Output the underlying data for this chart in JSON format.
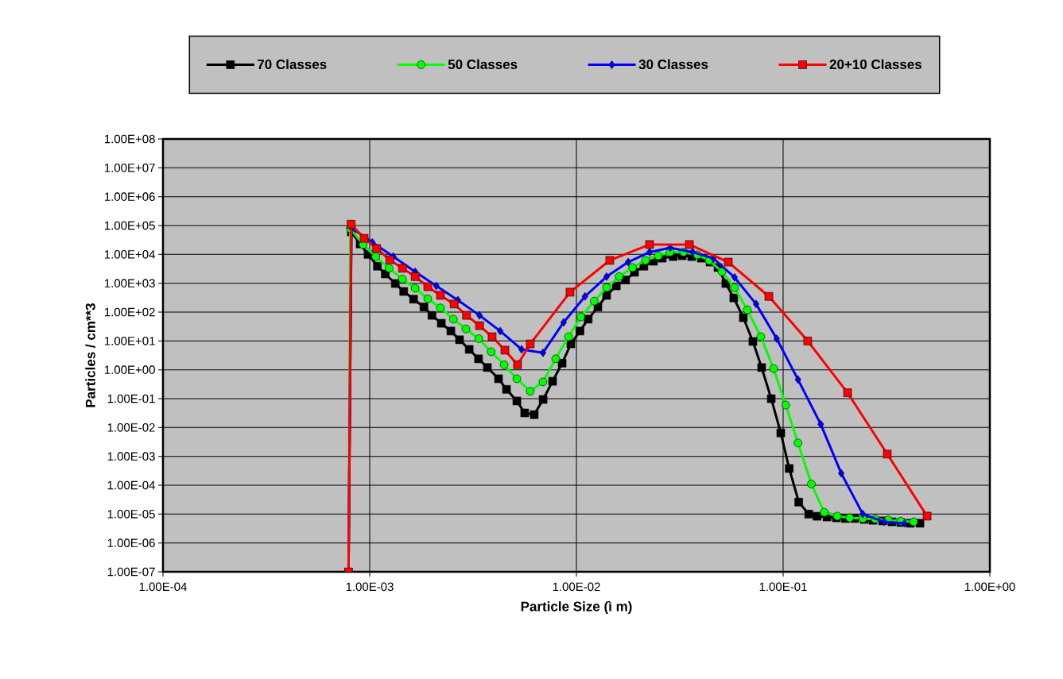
{
  "chart_data": {
    "type": "line",
    "xlabel": "Particle Size (ì m)",
    "ylabel": "Particles / cm**3",
    "log": "xy",
    "grid": true,
    "legend": "top",
    "xlim": [
      0.0001,
      1
    ],
    "ylim": [
      1e-07,
      100000000.0
    ],
    "xticks": [
      {
        "value": 0.0001,
        "label": "1.00E-04"
      },
      {
        "value": 0.001,
        "label": "1.00E-03"
      },
      {
        "value": 0.01,
        "label": "1.00E-02"
      },
      {
        "value": 0.1,
        "label": "1.00E-01"
      },
      {
        "value": 1,
        "label": "1.00E+00"
      }
    ],
    "yticks": [
      {
        "value": 1e-07,
        "label": "1.00E-07"
      },
      {
        "value": 1e-06,
        "label": "1.00E-06"
      },
      {
        "value": 1e-05,
        "label": "1.00E-05"
      },
      {
        "value": 0.0001,
        "label": "1.00E-04"
      },
      {
        "value": 0.001,
        "label": "1.00E-03"
      },
      {
        "value": 0.01,
        "label": "1.00E-02"
      },
      {
        "value": 0.1,
        "label": "1.00E-01"
      },
      {
        "value": 1,
        "label": "1.00E+00"
      },
      {
        "value": 10,
        "label": "1.00E+01"
      },
      {
        "value": 100,
        "label": "1.00E+02"
      },
      {
        "value": 1000,
        "label": "1.00E+03"
      },
      {
        "value": 10000,
        "label": "1.00E+04"
      },
      {
        "value": 100000,
        "label": "1.00E+05"
      },
      {
        "value": 1000000,
        "label": "1.00E+06"
      },
      {
        "value": 10000000,
        "label": "1.00E+07"
      },
      {
        "value": 100000000,
        "label": "1.00E+08"
      }
    ],
    "series": [
      {
        "name": "70 Classes",
        "color": "#000000",
        "marker": "square",
        "x": [
          0.00079,
          0.000815,
          0.000899,
          0.000982,
          0.00109,
          0.00119,
          0.00133,
          0.00146,
          0.00163,
          0.00183,
          0.002,
          0.00222,
          0.00247,
          0.00272,
          0.00303,
          0.00336,
          0.00371,
          0.0042,
          0.00459,
          0.00515,
          0.00562,
          0.00625,
          0.0069,
          0.00767,
          0.00853,
          0.0094,
          0.0104,
          0.0114,
          0.0127,
          0.014,
          0.0156,
          0.0173,
          0.0191,
          0.0212,
          0.0236,
          0.026,
          0.0294,
          0.0325,
          0.0361,
          0.0402,
          0.0443,
          0.0484,
          0.0528,
          0.0577,
          0.0642,
          0.0714,
          0.0787,
          0.0876,
          0.0974,
          0.107,
          0.119,
          0.133,
          0.146,
          0.163,
          0.181,
          0.2,
          0.222,
          0.247,
          0.272,
          0.303,
          0.336,
          0.371,
          0.412,
          0.459
        ],
        "values": [
          1e-07,
          60000.0,
          23000.0,
          10000.0,
          3900,
          2100,
          980,
          520,
          280,
          150,
          77,
          41,
          22,
          11,
          5.1,
          2.4,
          1.2,
          0.49,
          0.21,
          0.083,
          0.032,
          0.028,
          0.094,
          0.4,
          1.7,
          7.9,
          22,
          57,
          150,
          380,
          810,
          1300,
          2400,
          3900,
          5800,
          7400,
          8400,
          9000,
          8400,
          7400,
          5400,
          3500,
          980,
          310,
          64,
          9.6,
          1.2,
          0.1,
          0.0065,
          0.00038,
          2.6e-05,
          1e-05,
          8.4e-06,
          7.9e-06,
          7.4e-06,
          7e-06,
          7e-06,
          6.5e-06,
          6.1e-06,
          5.8e-06,
          5.4e-06,
          5.1e-06,
          4.8e-06,
          4.8e-06
        ]
      },
      {
        "name": "50 Classes",
        "color": "#00ff00",
        "marker": "circle",
        "x": [
          0.00079,
          0.000806,
          0.000929,
          0.00107,
          0.00124,
          0.00144,
          0.00166,
          0.00191,
          0.0022,
          0.00254,
          0.00292,
          0.00337,
          0.00387,
          0.00447,
          0.00515,
          0.00598,
          0.00689,
          0.00794,
          0.00916,
          0.0105,
          0.0122,
          0.014,
          0.0161,
          0.0187,
          0.0216,
          0.0249,
          0.0284,
          0.033,
          0.0385,
          0.0439,
          0.0506,
          0.0582,
          0.0671,
          0.078,
          0.0899,
          0.103,
          0.118,
          0.137,
          0.158,
          0.183,
          0.21,
          0.243,
          0.279,
          0.322,
          0.371,
          0.428
        ],
        "values": [
          1e-07,
          78000.0,
          22000.0,
          8400,
          3300,
          1400,
          670,
          290,
          140,
          57,
          26,
          12,
          4.2,
          1.5,
          0.49,
          0.18,
          0.38,
          2.4,
          14,
          68,
          240,
          710,
          1700,
          3500,
          6200,
          9000,
          12000.0,
          12000.0,
          9600,
          6200,
          2500,
          710,
          120,
          14,
          1.1,
          0.06,
          0.0029,
          0.00011,
          1.15e-05,
          8.5e-06,
          7.4e-06,
          7e-06,
          6.7e-06,
          6.3e-06,
          5.7e-06,
          5.4e-06
        ]
      },
      {
        "name": "30 Classes",
        "color": "#0000ff",
        "marker": "diamond",
        "x": [
          0.00079,
          0.000816,
          0.00103,
          0.0013,
          0.00166,
          0.0021,
          0.00267,
          0.0034,
          0.00428,
          0.00543,
          0.00689,
          0.00867,
          0.011,
          0.014,
          0.0178,
          0.0226,
          0.0284,
          0.0365,
          0.0459,
          0.0582,
          0.074,
          0.0931,
          0.118,
          0.152,
          0.191,
          0.243,
          0.308,
          0.387
        ],
        "values": [
          1e-07,
          83000.0,
          26000.0,
          8400,
          2500,
          810,
          260,
          77,
          22,
          5.1,
          3.9,
          44,
          350,
          1700,
          5400,
          12000.0,
          17000.0,
          12000.0,
          7400,
          1600,
          190,
          12,
          0.46,
          0.013,
          0.00026,
          1e-05,
          5.4e-06,
          4.8e-06
        ]
      },
      {
        "name": "20+10 Classes",
        "color": "#ff0000",
        "marker": "square",
        "x": [
          0.00079,
          0.000813,
          0.00094,
          0.00108,
          0.00125,
          0.00144,
          0.00166,
          0.00191,
          0.0022,
          0.00256,
          0.00294,
          0.0034,
          0.00391,
          0.00451,
          0.00519,
          0.00598,
          0.00931,
          0.0145,
          0.0226,
          0.0352,
          0.0543,
          0.0853,
          0.1315,
          0.205,
          0.319,
          0.497
        ],
        "values": [
          1e-07,
          111000.0,
          36000.0,
          16000.0,
          6500,
          3300,
          1700,
          760,
          380,
          190,
          77,
          34,
          14,
          4.8,
          1.5,
          7.9,
          490,
          6200,
          22000.0,
          22000.0,
          5400,
          350,
          10,
          0.16,
          0.0012,
          8.5e-06
        ]
      }
    ]
  }
}
